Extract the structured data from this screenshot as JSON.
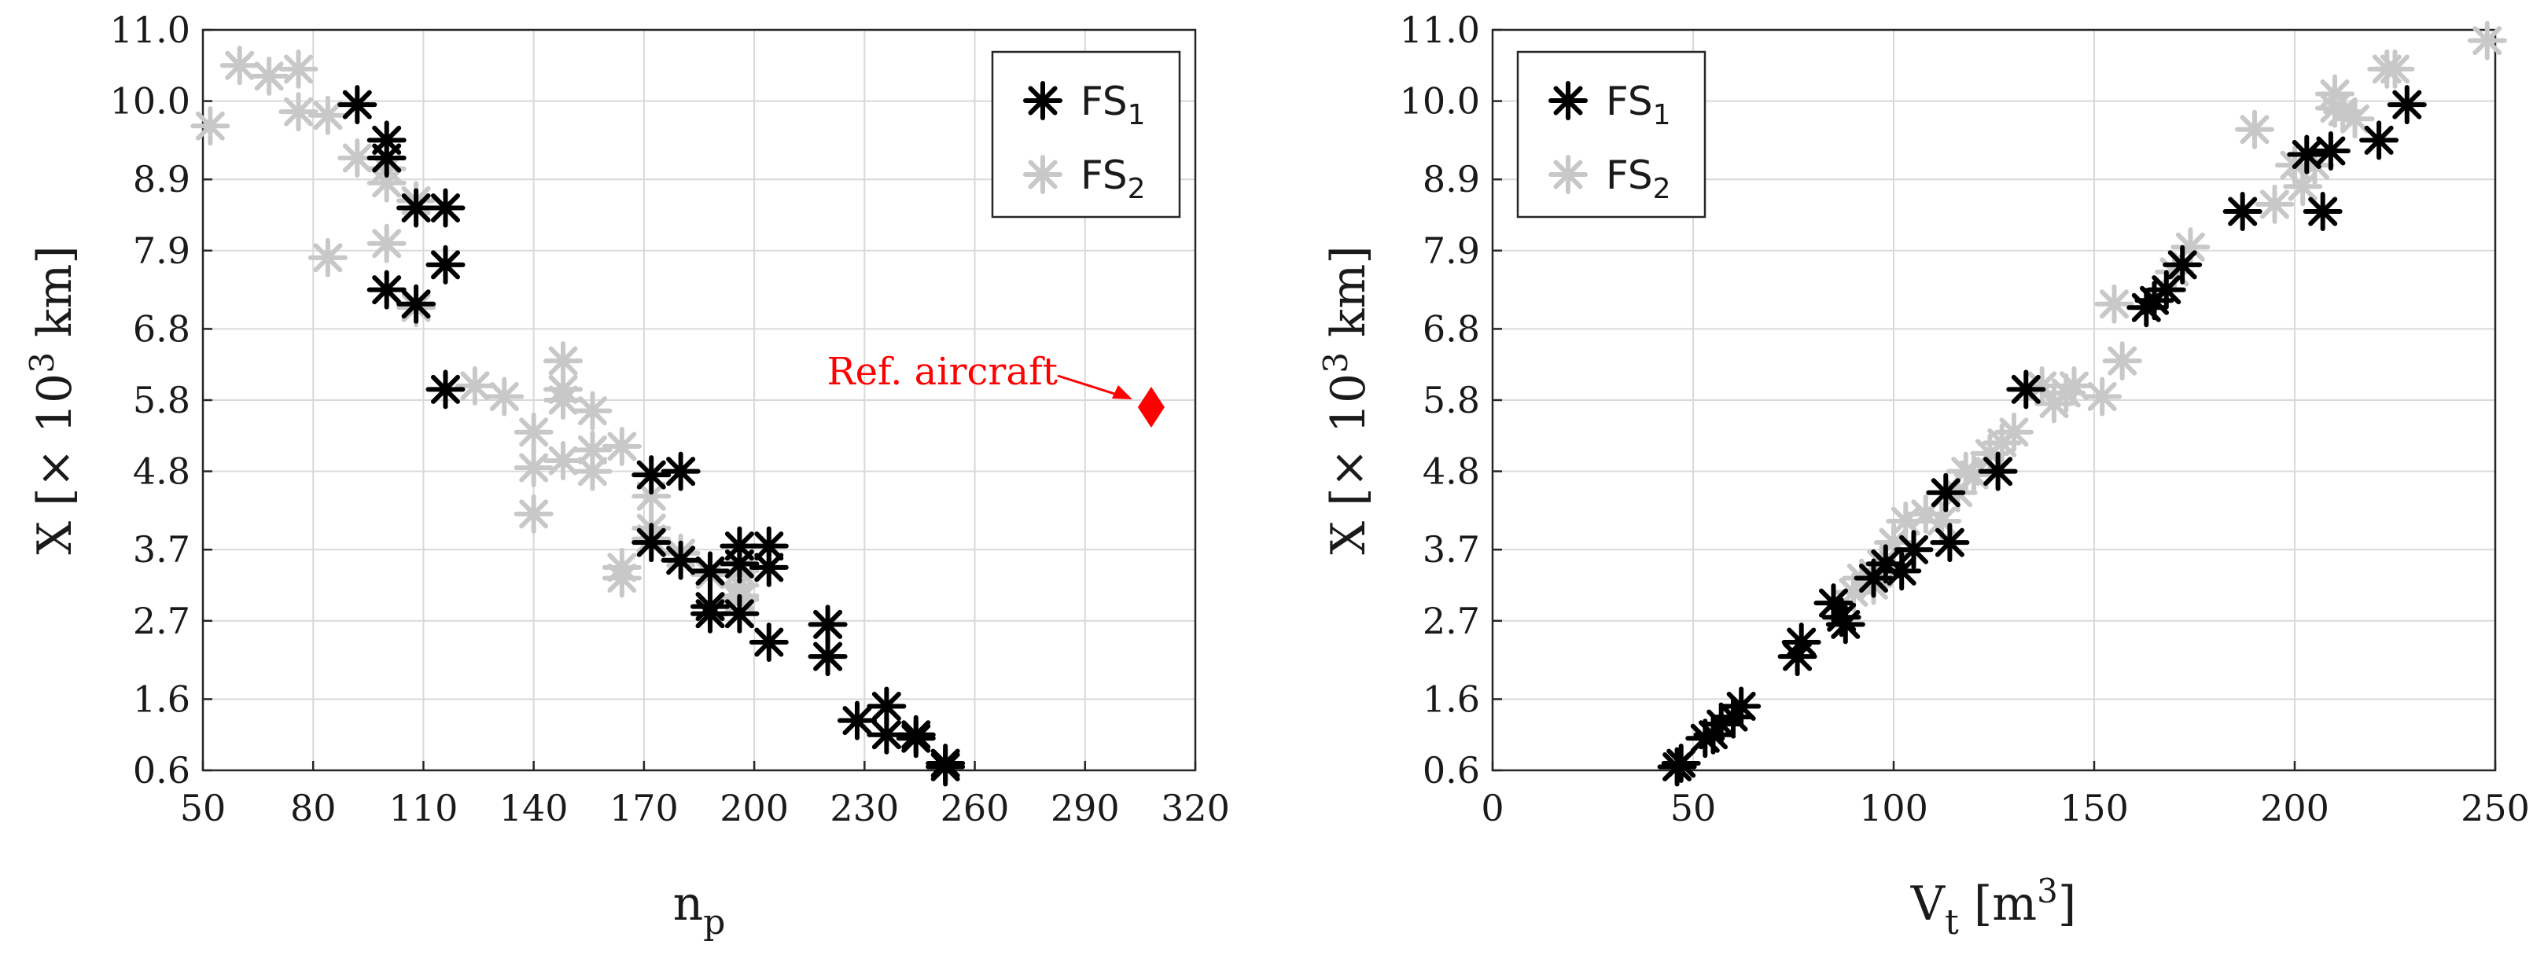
{
  "chart_data": [
    {
      "type": "scatter",
      "xlabel": "n",
      "xlabel_sub": "p",
      "ylabel": "X [× 10",
      "ylabel_sup": "3",
      "ylabel_tail": " km]",
      "xlim": [
        50,
        320
      ],
      "ylim": [
        0.6,
        11.0
      ],
      "xticks": [
        "50",
        "80",
        "110",
        "140",
        "170",
        "200",
        "230",
        "260",
        "290",
        "320"
      ],
      "yticks": [
        "0.6",
        "1.6",
        "2.7",
        "3.7",
        "4.8",
        "5.8",
        "6.8",
        "7.9",
        "8.9",
        "10.0",
        "11.0"
      ],
      "legend_position": "top-right",
      "series": [
        {
          "name": "FS",
          "name_sub": "1",
          "color": "#000000",
          "marker": "asterisk",
          "points": [
            [
              92,
              9.95
            ],
            [
              100,
              9.45
            ],
            [
              100,
              9.2
            ],
            [
              108,
              8.5
            ],
            [
              116,
              8.5
            ],
            [
              116,
              7.7
            ],
            [
              100,
              7.35
            ],
            [
              108,
              7.15
            ],
            [
              116,
              5.95
            ],
            [
              172,
              4.75
            ],
            [
              180,
              4.8
            ],
            [
              172,
              3.8
            ],
            [
              180,
              3.55
            ],
            [
              188,
              3.4
            ],
            [
              188,
              2.9
            ],
            [
              188,
              2.8
            ],
            [
              196,
              3.75
            ],
            [
              196,
              3.5
            ],
            [
              196,
              2.8
            ],
            [
              204,
              3.75
            ],
            [
              204,
              3.45
            ],
            [
              204,
              2.4
            ],
            [
              220,
              2.65
            ],
            [
              220,
              2.2
            ],
            [
              228,
              1.3
            ],
            [
              236,
              1.5
            ],
            [
              236,
              1.1
            ],
            [
              244,
              1.05
            ],
            [
              244,
              1.1
            ],
            [
              252,
              0.7
            ],
            [
              252,
              0.65
            ]
          ]
        },
        {
          "name": "FS",
          "name_sub": "2",
          "color": "#c8c8c8",
          "marker": "asterisk",
          "points": [
            [
              52,
              9.65
            ],
            [
              60,
              10.5
            ],
            [
              68,
              10.35
            ],
            [
              76,
              10.45
            ],
            [
              76,
              9.85
            ],
            [
              84,
              9.8
            ],
            [
              92,
              9.2
            ],
            [
              100,
              9.05
            ],
            [
              100,
              8.85
            ],
            [
              108,
              8.6
            ],
            [
              84,
              7.8
            ],
            [
              100,
              8.0
            ],
            [
              108,
              7.1
            ],
            [
              124,
              6.0
            ],
            [
              132,
              5.85
            ],
            [
              140,
              5.35
            ],
            [
              140,
              4.85
            ],
            [
              140,
              4.2
            ],
            [
              148,
              6.35
            ],
            [
              148,
              5.95
            ],
            [
              148,
              5.8
            ],
            [
              148,
              4.95
            ],
            [
              156,
              5.65
            ],
            [
              156,
              5.1
            ],
            [
              156,
              4.8
            ],
            [
              164,
              5.15
            ],
            [
              164,
              3.45
            ],
            [
              164,
              3.3
            ],
            [
              172,
              4.45
            ],
            [
              172,
              4.0
            ],
            [
              172,
              3.85
            ],
            [
              180,
              3.65
            ],
            [
              188,
              3.35
            ],
            [
              196,
              3.4
            ],
            [
              196,
              3.2
            ],
            [
              196,
              3.0
            ],
            [
              196,
              3.05
            ]
          ]
        },
        {
          "name": "Ref. aircraft",
          "color": "#ff0000",
          "marker": "diamond",
          "points": [
            [
              308,
              5.7
            ]
          ]
        }
      ],
      "annotations": [
        {
          "text": "Ref. aircraft",
          "points_to": [
            308,
            5.7
          ],
          "color": "#ff0000"
        }
      ]
    },
    {
      "type": "scatter",
      "xlabel": "V",
      "xlabel_sub": "t",
      "xlabel_tail": " [m",
      "xlabel_sup": "3",
      "xlabel_end": "]",
      "ylabel": "X [× 10",
      "ylabel_sup": "3",
      "ylabel_tail": " km]",
      "xlim": [
        0,
        250
      ],
      "ylim": [
        0.6,
        11.0
      ],
      "xticks": [
        "0",
        "50",
        "100",
        "150",
        "200",
        "250"
      ],
      "yticks": [
        "0.6",
        "1.6",
        "2.7",
        "3.7",
        "4.8",
        "5.8",
        "6.8",
        "7.9",
        "8.9",
        "10.0",
        "11.0"
      ],
      "legend_position": "top-left",
      "series": [
        {
          "name": "FS",
          "name_sub": "1",
          "color": "#000000",
          "marker": "asterisk",
          "points": [
            [
              46,
              0.65
            ],
            [
              47,
              0.7
            ],
            [
              53,
              1.05
            ],
            [
              55,
              1.1
            ],
            [
              57,
              1.25
            ],
            [
              60,
              1.35
            ],
            [
              62,
              1.5
            ],
            [
              76,
              2.2
            ],
            [
              77,
              2.4
            ],
            [
              85,
              2.95
            ],
            [
              87,
              2.75
            ],
            [
              88,
              2.65
            ],
            [
              95,
              3.3
            ],
            [
              98,
              3.5
            ],
            [
              102,
              3.4
            ],
            [
              105,
              3.7
            ],
            [
              113,
              4.5
            ],
            [
              114,
              3.8
            ],
            [
              126,
              4.8
            ],
            [
              133,
              5.95
            ],
            [
              163,
              7.1
            ],
            [
              165,
              7.2
            ],
            [
              168,
              7.35
            ],
            [
              172,
              7.7
            ],
            [
              187,
              8.45
            ],
            [
              203,
              9.25
            ],
            [
              207,
              8.45
            ],
            [
              209,
              9.3
            ],
            [
              221,
              9.45
            ],
            [
              228,
              9.95
            ]
          ]
        },
        {
          "name": "FS",
          "name_sub": "2",
          "color": "#c8c8c8",
          "marker": "asterisk",
          "points": [
            [
              90,
              3.1
            ],
            [
              92,
              3.3
            ],
            [
              95,
              3.2
            ],
            [
              97,
              3.5
            ],
            [
              100,
              3.8
            ],
            [
              103,
              4.1
            ],
            [
              108,
              4.2
            ],
            [
              112,
              4.1
            ],
            [
              116,
              4.5
            ],
            [
              118,
              4.8
            ],
            [
              120,
              4.75
            ],
            [
              124,
              5.05
            ],
            [
              127,
              5.2
            ],
            [
              130,
              5.35
            ],
            [
              137,
              6.0
            ],
            [
              140,
              5.75
            ],
            [
              143,
              5.9
            ],
            [
              145,
              6.0
            ],
            [
              152,
              5.85
            ],
            [
              155,
              7.15
            ],
            [
              157,
              6.35
            ],
            [
              170,
              7.6
            ],
            [
              174,
              7.95
            ],
            [
              190,
              9.6
            ],
            [
              195,
              8.55
            ],
            [
              200,
              9.1
            ],
            [
              202,
              8.8
            ],
            [
              205,
              9.1
            ],
            [
              210,
              9.9
            ],
            [
              210,
              10.1
            ],
            [
              212,
              9.85
            ],
            [
              215,
              9.75
            ],
            [
              223,
              10.45
            ],
            [
              225,
              10.45
            ],
            [
              248,
              10.85
            ]
          ]
        }
      ]
    }
  ]
}
